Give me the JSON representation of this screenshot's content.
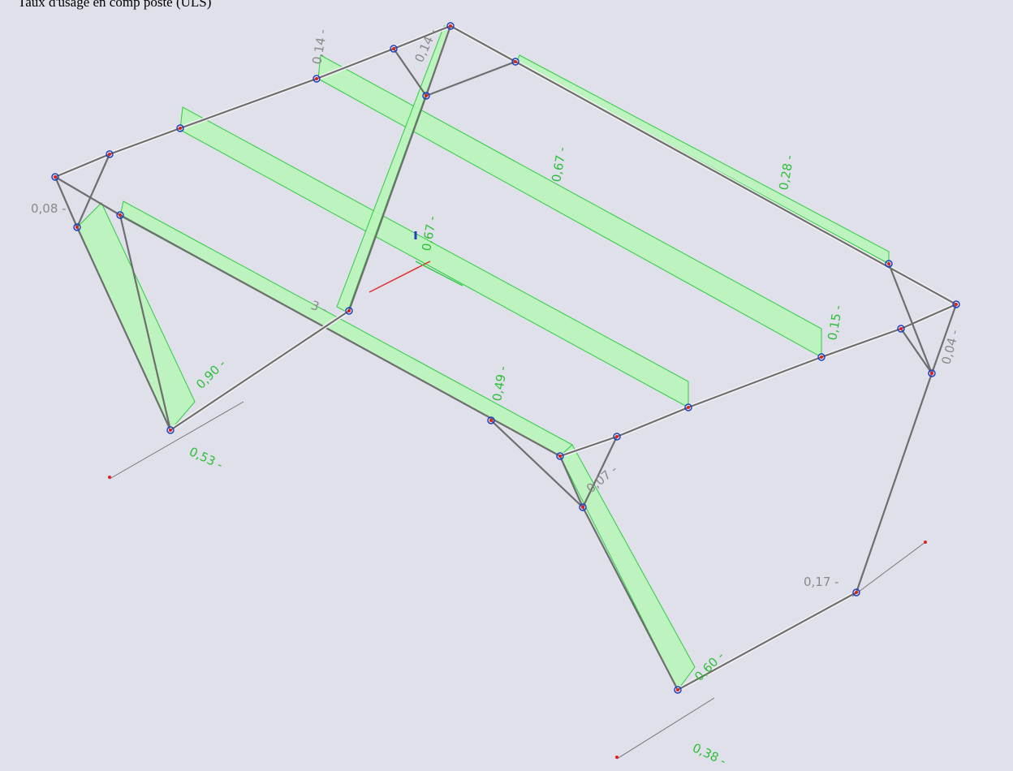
{
  "header": {
    "title": "Taux d'usage en comp poste (ULS)"
  },
  "labels": [
    "0,14 -",
    "0,14 -",
    "0,67 -",
    "0,28 -",
    "0,67 -",
    "0,08 -",
    "0,15 -",
    "0,04 -",
    "0,90 -",
    "0,49 -",
    "0,53 -",
    "0,07 -",
    "0,17 -",
    "0,60 -",
    "0,38 -",
    "3 -"
  ]
}
